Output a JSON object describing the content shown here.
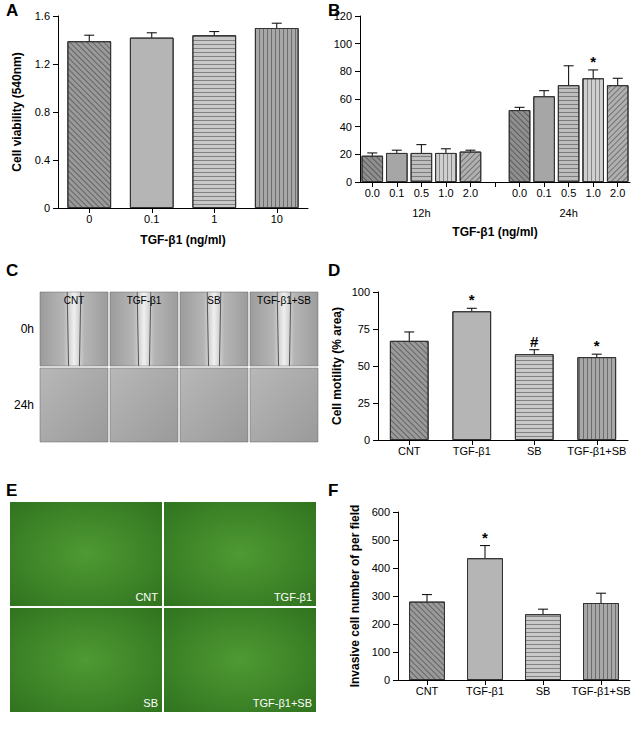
{
  "chart_data": [
    {
      "panel": "A",
      "type": "bar",
      "categories": [
        "0",
        "0.1",
        "1",
        "10"
      ],
      "values": [
        1.39,
        1.42,
        1.44,
        1.5
      ],
      "errors": [
        0.05,
        0.04,
        0.03,
        0.04
      ],
      "marks": [
        null,
        null,
        null,
        null
      ],
      "colors": [
        "#9a9a9a",
        "#b5b5b5",
        "#c8c8c8",
        "#a8a8a8"
      ],
      "ylim": [
        0,
        1.6
      ],
      "yticks": [
        0,
        0.4,
        0.8,
        1.2,
        1.6
      ],
      "ylabel": "Cell viability (540nm)",
      "xlabel": "TGF-β1 (ng/ml)",
      "grid": false
    },
    {
      "panel": "B",
      "type": "bar",
      "categories": [
        "0.0",
        "0.1",
        "0.5",
        "1.0",
        "2.0"
      ],
      "groups": [
        {
          "label": "12h",
          "values": [
            19,
            21,
            21,
            21,
            22
          ],
          "errors": [
            2,
            2,
            6,
            3,
            1
          ],
          "marks": [
            null,
            null,
            null,
            null,
            null
          ]
        },
        {
          "label": "24h",
          "values": [
            52,
            62,
            70,
            75,
            70
          ],
          "errors": [
            2,
            4,
            14,
            6,
            5
          ],
          "marks": [
            null,
            null,
            null,
            "*",
            null
          ]
        }
      ],
      "colors": [
        "#8f8f8f",
        "#a6a6a6",
        "#bdbdbd",
        "#cfcfcf",
        "#b0b0b0"
      ],
      "ylim": [
        0,
        120
      ],
      "yticks": [
        0,
        20,
        40,
        60,
        80,
        100,
        120
      ],
      "xlabel": "TGF-β1 (ng/ml)",
      "grid": false
    },
    {
      "panel": "D",
      "type": "bar",
      "categories": [
        "CNT",
        "TGF-β1",
        "SB",
        "TGF-β1+SB"
      ],
      "values": [
        67,
        87,
        58,
        56
      ],
      "errors": [
        6,
        2,
        3,
        2
      ],
      "marks": [
        null,
        "*",
        "#",
        "*"
      ],
      "colors": [
        "#9a9a9a",
        "#b5b5b5",
        "#c8c8c8",
        "#a8a8a8"
      ],
      "ylim": [
        0,
        100
      ],
      "yticks": [
        0,
        25,
        50,
        75,
        100
      ],
      "ylabel": "Cell motility (% area)",
      "grid": false
    },
    {
      "panel": "F",
      "type": "bar",
      "categories": [
        "CNT",
        "TGF-β1",
        "SB",
        "TGF-β1+SB"
      ],
      "values": [
        280,
        435,
        235,
        275
      ],
      "errors": [
        25,
        45,
        18,
        35
      ],
      "marks": [
        null,
        "*",
        null,
        null
      ],
      "colors": [
        "#9a9a9a",
        "#b5b5b5",
        "#c8c8c8",
        "#a8a8a8"
      ],
      "ylim": [
        0,
        600
      ],
      "yticks": [
        0,
        100,
        200,
        300,
        400,
        500,
        600
      ],
      "ylabel": "Invasive cell number of per field",
      "grid": false
    }
  ],
  "images": [
    {
      "panel": "C",
      "type": "image_grid",
      "columns": [
        "CNT",
        "TGF-β1",
        "SB",
        "TGF-β1+SB"
      ],
      "rows": [
        "0h",
        "24h"
      ]
    },
    {
      "panel": "E",
      "type": "image_grid",
      "labels": [
        "CNT",
        "TGF-β1",
        "SB",
        "TGF-β1+SB"
      ]
    }
  ]
}
